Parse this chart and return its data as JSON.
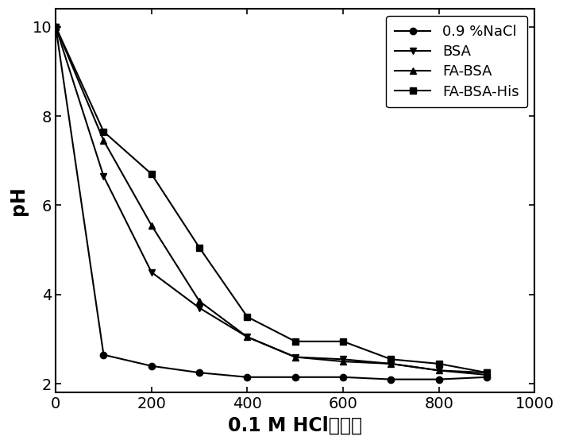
{
  "series": [
    {
      "label": "0.9 %NaCl",
      "marker": "o",
      "x": [
        0,
        100,
        200,
        300,
        400,
        500,
        600,
        700,
        800,
        900
      ],
      "y": [
        10.0,
        2.65,
        2.4,
        2.25,
        2.15,
        2.15,
        2.15,
        2.1,
        2.1,
        2.15
      ]
    },
    {
      "label": "BSA",
      "marker": "v",
      "x": [
        0,
        100,
        200,
        300,
        400,
        500,
        600,
        700,
        800,
        900
      ],
      "y": [
        10.0,
        6.65,
        4.5,
        3.7,
        3.05,
        2.6,
        2.55,
        2.45,
        2.3,
        2.25
      ]
    },
    {
      "label": "FA-BSA",
      "marker": "^",
      "x": [
        0,
        100,
        200,
        300,
        400,
        500,
        600,
        700,
        800,
        900
      ],
      "y": [
        10.0,
        7.45,
        5.55,
        3.85,
        3.05,
        2.6,
        2.5,
        2.45,
        2.3,
        2.2
      ]
    },
    {
      "label": "FA-BSA-His",
      "marker": "s",
      "x": [
        0,
        100,
        200,
        300,
        400,
        500,
        600,
        700,
        800,
        900
      ],
      "y": [
        10.0,
        7.65,
        6.7,
        5.05,
        3.5,
        2.95,
        2.95,
        2.55,
        2.45,
        2.25
      ]
    }
  ],
  "xlabel_ascii": "0.1 M HCl",
  "xlabel_chinese": "的体积",
  "ylabel": "pH",
  "xlim": [
    0,
    1000
  ],
  "ylim": [
    1.8,
    10.4
  ],
  "xticks": [
    0,
    200,
    400,
    600,
    800,
    1000
  ],
  "yticks": [
    2,
    4,
    6,
    8,
    10
  ],
  "color": "#000000",
  "linewidth": 1.5,
  "markersize": 6,
  "legend_loc": "upper right",
  "xlabel_fontsize": 17,
  "ylabel_fontsize": 17,
  "tick_fontsize": 14,
  "legend_fontsize": 13
}
